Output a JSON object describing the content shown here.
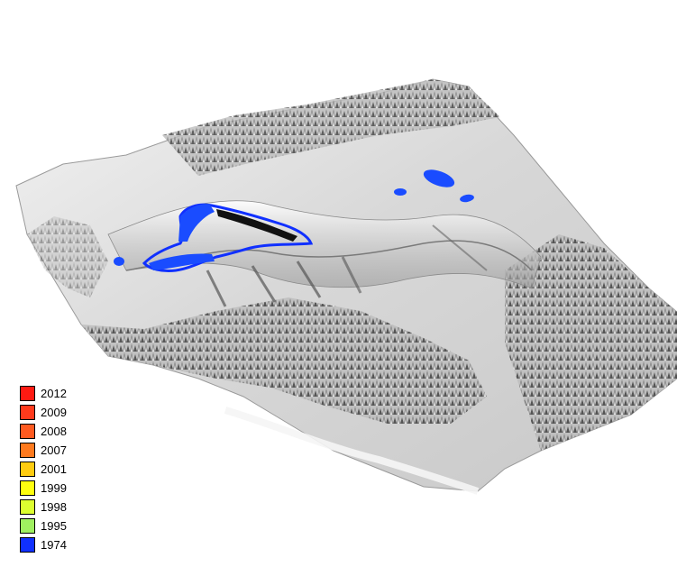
{
  "legend": [
    {
      "label": "2012",
      "color": "#ff1a12"
    },
    {
      "label": "2009",
      "color": "#ff3a1c"
    },
    {
      "label": "2008",
      "color": "#ff5a20"
    },
    {
      "label": "2007",
      "color": "#ff7a1e"
    },
    {
      "label": "2001",
      "color": "#ffcc10"
    },
    {
      "label": "1999",
      "color": "#ffff10"
    },
    {
      "label": "1998",
      "color": "#ddff30"
    },
    {
      "label": "1995",
      "color": "#a0f060"
    },
    {
      "label": "1974",
      "color": "#1030ff"
    }
  ],
  "terrain": {
    "rendering": "shaded-relief-3d",
    "surface_color": "#d9d9d9",
    "outline_color": "#1030ff",
    "icon": "terrain-surface"
  }
}
